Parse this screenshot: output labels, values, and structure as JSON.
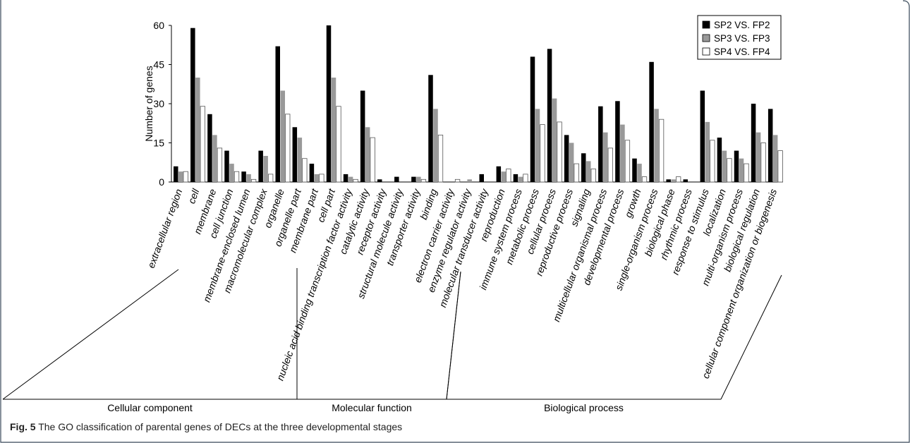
{
  "figure": {
    "caption_label": "Fig. 5",
    "caption_text": " The GO classification of parental genes of DECs at the three developmental stages"
  },
  "colors": {
    "series": [
      "#000000",
      "#999999",
      "#ffffff"
    ],
    "frame": "#3a4a5a"
  },
  "chart_data": {
    "type": "bar",
    "ylabel": "Number of genes",
    "xlabel": "",
    "ylim": [
      0,
      60
    ],
    "yticks": [
      0,
      15,
      30,
      45,
      60
    ],
    "legend_position": "top-right",
    "categories": [
      "extracellular region",
      "cell",
      "membrane",
      "cell junction",
      "membrane-enclosed lumen",
      "macromolecular complex",
      "organelle",
      "organelle part",
      "membrane part",
      "cell part",
      "nucleic acid binding transcription factor activity",
      "catalytic activity",
      "receptor activity",
      "structural molecule activity",
      "transporter activity",
      "binding",
      "electron carrier activity",
      "enzyme regulator activity",
      "molecular transducer activity",
      "reproduction",
      "immune system process",
      "metabolic process",
      "cellular process",
      "reproductive process",
      "signaling",
      "multicellular organismal process",
      "developmental process",
      "growth",
      "single-organism process",
      "biological phase",
      "rhythmic process",
      "response to stimulus",
      "localization",
      "multi-organism process",
      "biological regulation",
      "cellular component organization or biogenesis"
    ],
    "series": [
      {
        "name": "SP2 VS. FP2",
        "values": [
          6,
          59,
          26,
          12,
          4,
          12,
          52,
          21,
          7,
          60,
          3,
          35,
          1,
          2,
          2,
          41,
          0,
          0,
          3,
          6,
          3,
          48,
          51,
          18,
          11,
          29,
          31,
          9,
          46,
          1,
          1,
          35,
          17,
          12,
          30,
          28
        ]
      },
      {
        "name": "SP3 VS. FP3",
        "values": [
          4,
          40,
          18,
          7,
          3,
          10,
          35,
          17,
          3,
          40,
          2,
          21,
          0,
          0,
          2,
          28,
          0,
          1,
          0,
          4,
          2,
          28,
          32,
          15,
          8,
          19,
          22,
          7,
          28,
          1,
          0,
          23,
          12,
          9,
          19,
          18
        ]
      },
      {
        "name": "SP4 VS. FP4",
        "values": [
          4,
          29,
          13,
          4,
          1,
          3,
          26,
          9,
          3,
          29,
          1,
          17,
          0,
          0,
          1,
          18,
          1,
          0,
          0,
          5,
          3,
          22,
          23,
          7,
          5,
          13,
          16,
          2,
          24,
          2,
          0,
          16,
          9,
          7,
          15,
          12
        ]
      }
    ],
    "groups": [
      {
        "label": "Cellular component",
        "from": 0,
        "to": 9
      },
      {
        "label": "Molecular function",
        "from": 10,
        "to": 18
      },
      {
        "label": "Biological process",
        "from": 19,
        "to": 35
      }
    ]
  }
}
